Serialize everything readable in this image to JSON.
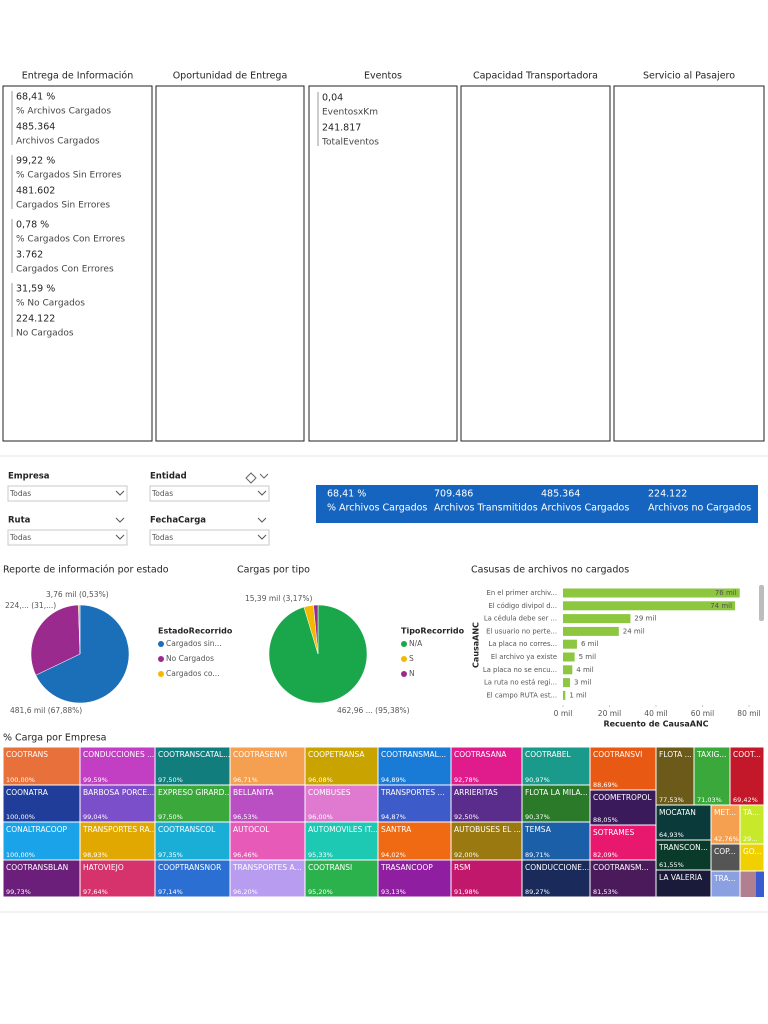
{
  "panels": [
    {
      "title": "Entrega de Información",
      "groups": [
        [
          {
            "value": "68,41 %",
            "label": "% Archivos Cargados"
          },
          {
            "value": "485.364",
            "label": "Archivos Cargados"
          }
        ],
        [
          {
            "value": "99,22 %",
            "label": "% Cargados Sin Errores"
          },
          {
            "value": "481.602",
            "label": "Cargados Sin Errores"
          }
        ],
        [
          {
            "value": "0,78 %",
            "label": "% Cargados Con Errores"
          },
          {
            "value": "3.762",
            "label": "Cargados Con Errores"
          }
        ],
        [
          {
            "value": "31,59 %",
            "label": "% No Cargados"
          },
          {
            "value": "224.122",
            "label": "No Cargados"
          }
        ]
      ]
    },
    {
      "title": "Oportunidad de Entrega",
      "groups": []
    },
    {
      "title": "Eventos",
      "groups": [
        [
          {
            "value": "0,04",
            "label": "EventosxKm"
          },
          {
            "value": "241.817",
            "label": "TotalEventos"
          }
        ]
      ]
    },
    {
      "title": "Capacidad Transportadora",
      "groups": []
    },
    {
      "title": "Servicio al Pasajero",
      "groups": []
    }
  ],
  "filters": [
    {
      "label": "Empresa",
      "value": "Todas"
    },
    {
      "label": "Entidad",
      "value": "Todas"
    },
    {
      "label": "Ruta",
      "value": "Todas"
    },
    {
      "label": "FechaCarga",
      "value": "Todas"
    }
  ],
  "kpis": [
    {
      "value": "68,41 %",
      "label": "% Archivos Cargados"
    },
    {
      "value": "709.486",
      "label": "Archivos Transmitidos"
    },
    {
      "value": "485.364",
      "label": "Archivos Cargados"
    },
    {
      "value": "224.122",
      "label": "Archivos no Cargados"
    }
  ],
  "chart_data": [
    {
      "type": "pie",
      "title": "Reporte de información por estado",
      "legend_title": "EstadoRecorrido",
      "categories": [
        "Cargados sin...",
        "No Cargados",
        "Cargados co..."
      ],
      "values": [
        481.602,
        224.122,
        3.762
      ],
      "value_labels": [
        "481,6 mil (67,88%)",
        "224,... (31,...)",
        "3,76 mil (0,53%)"
      ],
      "colors": [
        "#1a6fb8",
        "#9b2a8f",
        "#f5b800"
      ]
    },
    {
      "type": "pie",
      "title": "Cargas por tipo",
      "legend_title": "TipoRecorrido",
      "categories": [
        "N/A",
        "S",
        "N"
      ],
      "values": [
        462.96,
        15.39,
        7.05
      ],
      "value_labels": [
        "462,96 ... (95,38%)",
        "15,39 mil (3,17%)",
        null
      ],
      "colors": [
        "#1aa64a",
        "#f5b800",
        "#9b2a8f"
      ]
    },
    {
      "type": "hbar",
      "title": "Casusas de archivos no cargados",
      "y_label": "CausaANC",
      "x_label": "Recuento de CausaANC",
      "categories": [
        "En el primer archiv...",
        "El código divipol d...",
        "La cédula debe ser ...",
        "El usuario no perte...",
        "La placa no corres...",
        "El archivo ya existe",
        "La placa no se encu...",
        "La ruta no está regi...",
        "El campo RUTA est..."
      ],
      "values": [
        76,
        74,
        29,
        24,
        6,
        5,
        4,
        3,
        1
      ],
      "value_labels": [
        "76 mil",
        "74 mil",
        "29 mil",
        "24 mil",
        "6 mil",
        "5 mil",
        "4 mil",
        "3 mil",
        "1 mil"
      ],
      "color": "#8dc63f",
      "xlim": [
        0,
        80
      ],
      "xticks": [
        {
          "value": 0,
          "label": "0 mil"
        },
        {
          "value": 20,
          "label": "20 mil"
        },
        {
          "value": 40,
          "label": "40 mil"
        },
        {
          "value": 60,
          "label": "60 mil"
        },
        {
          "value": 80,
          "label": "80 mil"
        }
      ]
    },
    {
      "type": "treemap",
      "title": "% Carga por Empresa",
      "items": [
        {
          "name": "COOTRANS",
          "value": 100,
          "value_label": "100,00%",
          "color": "#e8703a"
        },
        {
          "name": "COONATRA",
          "value": 100,
          "value_label": "100,00%",
          "color": "#1f3d99"
        },
        {
          "name": "CONALTRACOOP",
          "value": 100,
          "value_label": "100,00%",
          "color": "#1aa3e8"
        },
        {
          "name": "COOTRANSBLAN",
          "value": 99.73,
          "value_label": "99,73%",
          "color": "#6b1f7a"
        },
        {
          "name": "CONDUCCIONES ...",
          "value": 99.59,
          "value_label": "99,59%",
          "color": "#c23ec2"
        },
        {
          "name": "BARBOSA PORCE...",
          "value": 99.04,
          "value_label": "99,04%",
          "color": "#7b4fc9"
        },
        {
          "name": "TRANSPORTES RA...",
          "value": 98.93,
          "value_label": "98,93%",
          "color": "#e0a800"
        },
        {
          "name": "HATOVIEJO",
          "value": 97.64,
          "value_label": "97,64%",
          "color": "#d6336c"
        },
        {
          "name": "COOTRANSCATAL...",
          "value": 97.5,
          "value_label": "97,50%",
          "color": "#127d7d"
        },
        {
          "name": "EXPRESO GIRARD...",
          "value": 97.5,
          "value_label": "97,50%",
          "color": "#3aa83a"
        },
        {
          "name": "COOTRANSCOL",
          "value": 97.35,
          "value_label": "97,35%",
          "color": "#1aaed6"
        },
        {
          "name": "COOPTRANSNOR",
          "value": 97.14,
          "value_label": "97,14%",
          "color": "#2a6fd1"
        },
        {
          "name": "COOTRASENVI",
          "value": 96.71,
          "value_label": "96,71%",
          "color": "#f5a050"
        },
        {
          "name": "BELLANITA",
          "value": 96.53,
          "value_label": "96,53%",
          "color": "#b94fc2"
        },
        {
          "name": "AUTOCOL",
          "value": 96.46,
          "value_label": "96,46%",
          "color": "#e85ab8"
        },
        {
          "name": "TRANSPORTES A...",
          "value": 96.2,
          "value_label": "96,20%",
          "color": "#b89cf0"
        },
        {
          "name": "COOPETRANSA",
          "value": 96.08,
          "value_label": "96,08%",
          "color": "#c9a400"
        },
        {
          "name": "COMBUSES",
          "value": 96,
          "value_label": "96,00%",
          "color": "#e07ad0"
        },
        {
          "name": "AUTOMOVILES IT...",
          "value": 95.33,
          "value_label": "95,33%",
          "color": "#1ec9b4"
        },
        {
          "name": "COOTRANSI",
          "value": 95.2,
          "value_label": "95,20%",
          "color": "#2bb24c"
        },
        {
          "name": "COOTRANSMAL...",
          "value": 94.89,
          "value_label": "94,89%",
          "color": "#1a7bd6"
        },
        {
          "name": "TRANSPORTES ...",
          "value": 94.87,
          "value_label": "94,87%",
          "color": "#3d5bc9"
        },
        {
          "name": "SANTRA",
          "value": 94.02,
          "value_label": "94,02%",
          "color": "#f06a14"
        },
        {
          "name": "TRASANCOOP",
          "value": 93.13,
          "value_label": "93,13%",
          "color": "#8f1fa0"
        },
        {
          "name": "COOTRASANA",
          "value": 92.78,
          "value_label": "92,78%",
          "color": "#e01c8c"
        },
        {
          "name": "ARRIERITAS",
          "value": 92.5,
          "value_label": "92,50%",
          "color": "#5a2d8c"
        },
        {
          "name": "AUTOBUSES EL ...",
          "value": 92,
          "value_label": "92,00%",
          "color": "#9a7a10"
        },
        {
          "name": "RSM",
          "value": 91.98,
          "value_label": "91,98%",
          "color": "#c2186b"
        },
        {
          "name": "COOTRABEL",
          "value": 90.97,
          "value_label": "90,97%",
          "color": "#1a9a8a"
        },
        {
          "name": "FLOTA LA MILA...",
          "value": 90.37,
          "value_label": "90,37%",
          "color": "#2a7a2a"
        },
        {
          "name": "TEMSA",
          "value": 89.71,
          "value_label": "89,71%",
          "color": "#1a5fa8"
        },
        {
          "name": "CONDUCCIONE...",
          "value": 89.27,
          "value_label": "89,27%",
          "color": "#1a2a5a"
        },
        {
          "name": "COOTRANSVI",
          "value": 88.69,
          "value_label": "88,69%",
          "color": "#e85a14"
        },
        {
          "name": "COOMETROPOL",
          "value": 88.05,
          "value_label": "88,05%",
          "color": "#3a1a5a"
        },
        {
          "name": "SOTRAMES",
          "value": 82.09,
          "value_label": "82,09%",
          "color": "#e8186e"
        },
        {
          "name": "COOTRANSM...",
          "value": 81.53,
          "value_label": "81,53%",
          "color": "#4a1a5a"
        },
        {
          "name": "FLOTA ...",
          "value": 77.53,
          "value_label": "77,53%",
          "color": "#6b5a1a"
        },
        {
          "name": "TAXIG...",
          "value": 71.03,
          "value_label": "71,03%",
          "color": "#3aa83a"
        },
        {
          "name": "COOT...",
          "value": 69.42,
          "value_label": "69,42%",
          "color": "#c2182a"
        },
        {
          "name": "MOCATAN",
          "value": 64.93,
          "value_label": "64,93%",
          "color": "#0a3a3a"
        },
        {
          "name": "MET...",
          "value": 42.76,
          "value_label": "42,76%",
          "color": "#f5a050"
        },
        {
          "name": "TA...",
          "value": 29,
          "value_label": "29...",
          "color": "#c8e82a"
        },
        {
          "name": "TRANSCON...",
          "value": 61.55,
          "value_label": "61,55%",
          "color": "#0a3a2a"
        },
        {
          "name": "COP...",
          "color": "#555555"
        },
        {
          "name": "GO...",
          "color": "#f0d000"
        },
        {
          "name": "LA VALERIA",
          "color": "#1a1a3a"
        },
        {
          "name": "TRA...",
          "color": "#8aa0e0"
        }
      ]
    }
  ]
}
